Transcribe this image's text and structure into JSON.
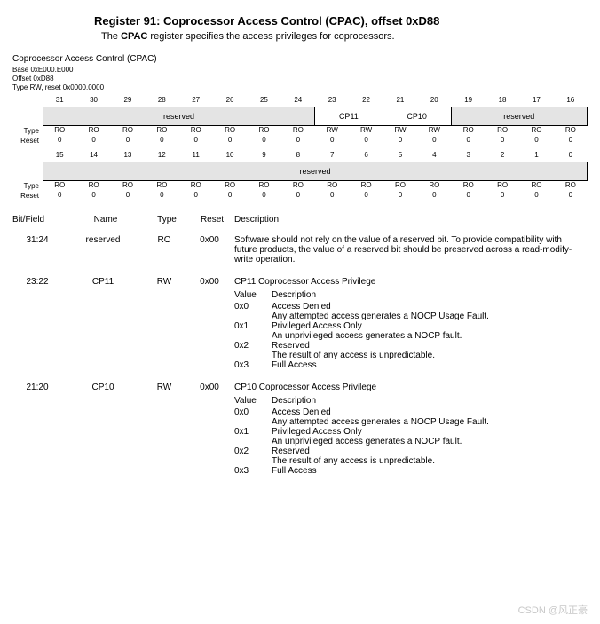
{
  "header": {
    "title": "Register 91: Coprocessor Access Control (CPAC), offset 0xD88",
    "subtitle_pre": "The ",
    "subtitle_bold": "CPAC",
    "subtitle_post": " register specifies the access privileges for coprocessors."
  },
  "meta": {
    "name": "Coprocessor Access Control (CPAC)",
    "base": "Base 0xE000.E000",
    "offset": "Offset 0xD88",
    "type": "Type RW, reset 0x0000.0000"
  },
  "bits_hi_nums": [
    "31",
    "30",
    "29",
    "28",
    "27",
    "26",
    "25",
    "24",
    "23",
    "22",
    "21",
    "20",
    "19",
    "18",
    "17",
    "16"
  ],
  "bits_lo_nums": [
    "15",
    "14",
    "13",
    "12",
    "11",
    "10",
    "9",
    "8",
    "7",
    "6",
    "5",
    "4",
    "3",
    "2",
    "1",
    "0"
  ],
  "segments_hi": {
    "reserved1": "reserved",
    "cp11": "CP11",
    "cp10": "CP10",
    "reserved2": "reserved"
  },
  "segments_lo": {
    "reserved": "reserved"
  },
  "row_labels": {
    "type": "Type",
    "reset": "Reset"
  },
  "type_hi": [
    "RO",
    "RO",
    "RO",
    "RO",
    "RO",
    "RO",
    "RO",
    "RO",
    "RW",
    "RW",
    "RW",
    "RW",
    "RO",
    "RO",
    "RO",
    "RO"
  ],
  "reset_hi": [
    "0",
    "0",
    "0",
    "0",
    "0",
    "0",
    "0",
    "0",
    "0",
    "0",
    "0",
    "0",
    "0",
    "0",
    "0",
    "0"
  ],
  "type_lo": [
    "RO",
    "RO",
    "RO",
    "RO",
    "RO",
    "RO",
    "RO",
    "RO",
    "RO",
    "RO",
    "RO",
    "RO",
    "RO",
    "RO",
    "RO",
    "RO"
  ],
  "reset_lo": [
    "0",
    "0",
    "0",
    "0",
    "0",
    "0",
    "0",
    "0",
    "0",
    "0",
    "0",
    "0",
    "0",
    "0",
    "0",
    "0"
  ],
  "field_head": {
    "bit": "Bit/Field",
    "name": "Name",
    "type": "Type",
    "reset": "Reset",
    "desc": "Description"
  },
  "fields": {
    "r0": {
      "bit": "31:24",
      "name": "reserved",
      "type": "RO",
      "reset": "0x00",
      "desc": "Software should not rely on the value of a reserved bit. To provide compatibility with future products, the value of a reserved bit should be preserved across a read-modify-write operation."
    },
    "r1": {
      "bit": "23:22",
      "name": "CP11",
      "type": "RW",
      "reset": "0x00",
      "desc": "CP11 Coprocessor Access Privilege",
      "vh": {
        "v": "Value",
        "d": "Description"
      },
      "vals": {
        "a": {
          "v": "0x0",
          "t": "Access Denied",
          "s": "Any attempted access generates a NOCP Usage Fault."
        },
        "b": {
          "v": "0x1",
          "t": "Privileged Access Only",
          "s": "An unprivileged access generates a NOCP fault."
        },
        "c": {
          "v": "0x2",
          "t": "Reserved",
          "s": "The result of any access is unpredictable."
        },
        "d": {
          "v": "0x3",
          "t": "Full Access",
          "s": ""
        }
      }
    },
    "r2": {
      "bit": "21:20",
      "name": "CP10",
      "type": "RW",
      "reset": "0x00",
      "desc": "CP10 Coprocessor Access Privilege",
      "vh": {
        "v": "Value",
        "d": "Description"
      },
      "vals": {
        "a": {
          "v": "0x0",
          "t": "Access Denied",
          "s": "Any attempted access generates a NOCP Usage Fault."
        },
        "b": {
          "v": "0x1",
          "t": "Privileged Access Only",
          "s": "An unprivileged access generates a NOCP fault."
        },
        "c": {
          "v": "0x2",
          "t": "Reserved",
          "s": "The result of any access is unpredictable."
        },
        "d": {
          "v": "0x3",
          "t": "Full Access",
          "s": ""
        }
      }
    }
  },
  "watermark": "CSDN @风正豪",
  "colors": {
    "gray": "#e4e4e4",
    "text": "#000000",
    "bg": "#ffffff",
    "wm": "#c7c7c7"
  }
}
